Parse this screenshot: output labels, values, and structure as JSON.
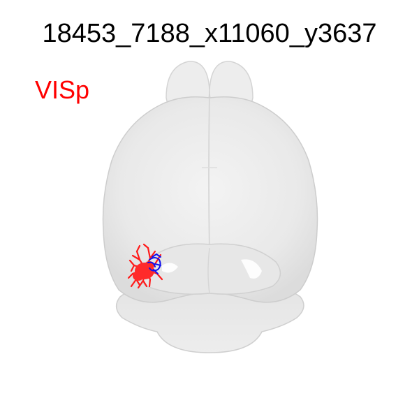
{
  "neuron_id": "18453_7188_x11060_y3637",
  "region": {
    "label": "VISp",
    "color": "#ff0000"
  },
  "colors": {
    "brain_fill": "#ececec",
    "brain_stroke": "#d2d2d2",
    "dendrite": "#ff2020",
    "axon": "#1010ee",
    "background": "#ffffff"
  }
}
